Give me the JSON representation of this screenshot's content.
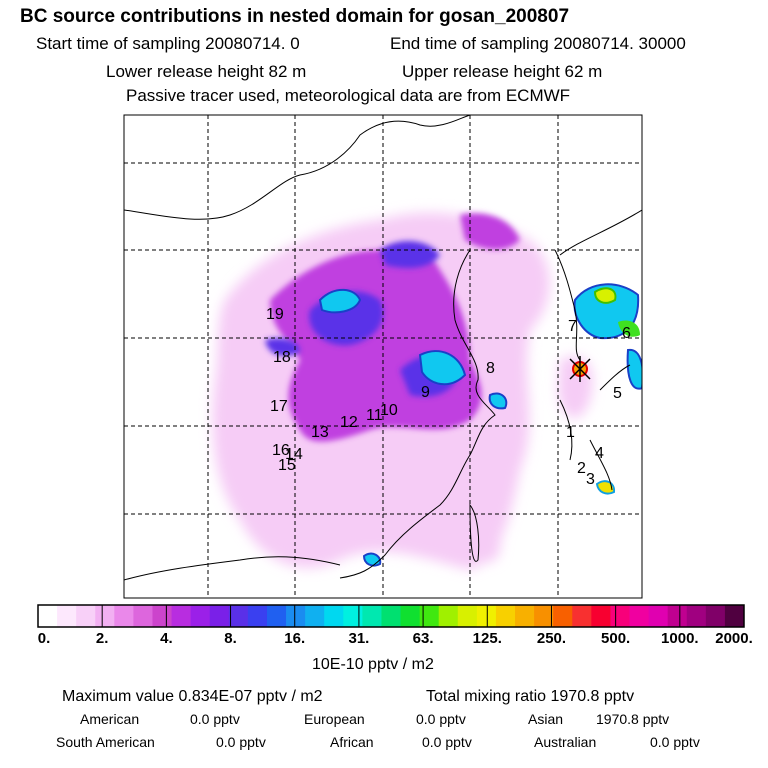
{
  "header": {
    "title": "BC  source contributions in nested domain for gosan_200807",
    "start_label": "Start time of sampling 20080714.     0",
    "end_label": "End time of sampling 20080714. 30000",
    "lower_release": "Lower release height   82 m",
    "upper_release": "Upper release height   62 m",
    "tracer_note": "Passive tracer used, meteorological data are from ECMWF"
  },
  "map": {
    "receptor_marker": "receptor-star-icon",
    "region_labels": [
      "1",
      "2",
      "3",
      "4",
      "5",
      "6",
      "7",
      "8",
      "9",
      "10",
      "11",
      "12",
      "13",
      "14",
      "15",
      "16",
      "17",
      "18",
      "19"
    ]
  },
  "colorbar": {
    "tick_labels": [
      "0.",
      "2.",
      "4.",
      "8.",
      "16.",
      "31.",
      "63.",
      "125.",
      "250.",
      "500.",
      "1000.",
      "2000."
    ],
    "colors": [
      "#ffffff",
      "#fde8fd",
      "#f8d0f8",
      "#f2b0f2",
      "#ea88ea",
      "#dd66dd",
      "#cc44cc",
      "#b82de0",
      "#9b20e8",
      "#7a20e8",
      "#5a30e8",
      "#3a40f0",
      "#2060f0",
      "#1a8cf0",
      "#10b0f0",
      "#00d8f0",
      "#00f0e0",
      "#00e8b0",
      "#00e070",
      "#10e030",
      "#40e810",
      "#a0f000",
      "#d8f000",
      "#f0f000",
      "#f8d000",
      "#f8b000",
      "#f89000",
      "#f86000",
      "#f83030",
      "#f80030",
      "#f8007a",
      "#f000a0",
      "#e000b0",
      "#c00090",
      "#a00080",
      "#800068",
      "#500040"
    ],
    "unit": "10E-10 pptv / m2"
  },
  "stats": {
    "maximum": "Maximum value  0.834E-07 pptv / m2",
    "total": "Total mixing ratio     1970.8 pptv",
    "rows": [
      [
        {
          "name": "American",
          "value": "0.0 pptv"
        },
        {
          "name": "European",
          "value": "0.0 pptv"
        },
        {
          "name": "Asian",
          "value": "1970.8 pptv"
        }
      ],
      [
        {
          "name": "South American",
          "value": "0.0 pptv"
        },
        {
          "name": "African",
          "value": "0.0 pptv"
        },
        {
          "name": "Australian",
          "value": "0.0 pptv"
        }
      ]
    ]
  }
}
